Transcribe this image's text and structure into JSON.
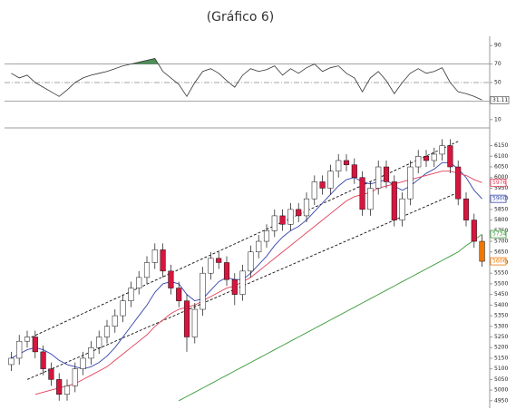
{
  "chart_data": {
    "type": "candlestick",
    "title": "(Gráfico 6)",
    "ylim": [
      4915,
      6225
    ],
    "yticks": [
      4950,
      5000,
      5050,
      5100,
      5150,
      5200,
      5250,
      5300,
      5350,
      5400,
      5450,
      5500,
      5550,
      5600,
      5650,
      5700,
      5750,
      5800,
      5850,
      5900,
      5950,
      6000,
      6050,
      6100,
      6150
    ],
    "up_color": "#ffffff",
    "down_color": "#d6163f",
    "candles": [
      [
        5120,
        5180,
        5090,
        5150
      ],
      [
        5150,
        5260,
        5120,
        5230
      ],
      [
        5230,
        5280,
        5200,
        5250
      ],
      [
        5250,
        5280,
        5150,
        5180
      ],
      [
        5180,
        5210,
        5070,
        5100
      ],
      [
        5100,
        5130,
        5020,
        5050
      ],
      [
        5050,
        5080,
        4950,
        4980
      ],
      [
        4980,
        5050,
        4950,
        5020
      ],
      [
        5020,
        5130,
        4990,
        5100
      ],
      [
        5100,
        5180,
        5070,
        5150
      ],
      [
        5150,
        5230,
        5120,
        5200
      ],
      [
        5200,
        5280,
        5170,
        5250
      ],
      [
        5250,
        5330,
        5220,
        5300
      ],
      [
        5300,
        5380,
        5270,
        5350
      ],
      [
        5350,
        5450,
        5320,
        5420
      ],
      [
        5420,
        5510,
        5390,
        5480
      ],
      [
        5480,
        5560,
        5450,
        5530
      ],
      [
        5530,
        5630,
        5500,
        5600
      ],
      [
        5600,
        5690,
        5570,
        5660
      ],
      [
        5660,
        5690,
        5530,
        5560
      ],
      [
        5560,
        5590,
        5450,
        5480
      ],
      [
        5480,
        5510,
        5390,
        5420
      ],
      [
        5420,
        5450,
        5180,
        5250
      ],
      [
        5250,
        5410,
        5220,
        5380
      ],
      [
        5380,
        5580,
        5350,
        5550
      ],
      [
        5550,
        5650,
        5520,
        5620
      ],
      [
        5620,
        5650,
        5570,
        5600
      ],
      [
        5600,
        5630,
        5490,
        5520
      ],
      [
        5520,
        5550,
        5400,
        5450
      ],
      [
        5450,
        5590,
        5420,
        5560
      ],
      [
        5560,
        5680,
        5530,
        5650
      ],
      [
        5650,
        5730,
        5620,
        5700
      ],
      [
        5700,
        5780,
        5670,
        5750
      ],
      [
        5750,
        5850,
        5720,
        5820
      ],
      [
        5820,
        5850,
        5750,
        5780
      ],
      [
        5780,
        5880,
        5750,
        5850
      ],
      [
        5850,
        5880,
        5790,
        5820
      ],
      [
        5820,
        5930,
        5790,
        5900
      ],
      [
        5900,
        6010,
        5870,
        5980
      ],
      [
        5980,
        6010,
        5920,
        5950
      ],
      [
        5950,
        6060,
        5920,
        6030
      ],
      [
        6030,
        6110,
        6000,
        6080
      ],
      [
        6080,
        6110,
        6030,
        6060
      ],
      [
        6060,
        6090,
        5970,
        6000
      ],
      [
        6000,
        6030,
        5820,
        5850
      ],
      [
        5850,
        5980,
        5820,
        5950
      ],
      [
        5950,
        6080,
        5920,
        6050
      ],
      [
        6050,
        6080,
        5950,
        5980
      ],
      [
        5980,
        6010,
        5770,
        5800
      ],
      [
        5800,
        5930,
        5770,
        5900
      ],
      [
        5900,
        6080,
        5870,
        6050
      ],
      [
        6050,
        6130,
        6020,
        6100
      ],
      [
        6100,
        6130,
        6050,
        6080
      ],
      [
        6080,
        6140,
        6050,
        6110
      ],
      [
        6110,
        6180,
        6080,
        6150
      ],
      [
        6150,
        6180,
        6020,
        6050
      ],
      [
        6050,
        6080,
        5870,
        5900
      ],
      [
        5900,
        5930,
        5770,
        5800
      ],
      [
        5800,
        5830,
        5670,
        5700
      ],
      [
        5700,
        5730,
        5580,
        5606
      ]
    ],
    "last_color": "#f07800",
    "series": [
      {
        "color": "#3344aa",
        "values": [
          5150,
          5170,
          5190,
          5200,
          5190,
          5170,
          5140,
          5120,
          5110,
          5100,
          5110,
          5130,
          5160,
          5200,
          5250,
          5300,
          5350,
          5400,
          5460,
          5500,
          5510,
          5500,
          5450,
          5420,
          5430,
          5470,
          5510,
          5530,
          5520,
          5520,
          5550,
          5590,
          5630,
          5680,
          5720,
          5750,
          5770,
          5800,
          5840,
          5880,
          5920,
          5960,
          5990,
          6000,
          5980,
          5970,
          5980,
          5990,
          5960,
          5940,
          5960,
          5990,
          6020,
          6040,
          6070,
          6070,
          6040,
          6000,
          5940,
          5900
        ]
      },
      {
        "color": "#e0405a",
        "values": [
          null,
          null,
          null,
          4980,
          4990,
          5000,
          5010,
          5020,
          5030,
          5050,
          5070,
          5090,
          5110,
          5140,
          5170,
          5200,
          5230,
          5260,
          5300,
          5330,
          5360,
          5380,
          5390,
          5400,
          5420,
          5440,
          5460,
          5480,
          5490,
          5510,
          5530,
          5560,
          5590,
          5620,
          5650,
          5680,
          5710,
          5740,
          5770,
          5800,
          5830,
          5860,
          5890,
          5910,
          5920,
          5930,
          5950,
          5960,
          5970,
          5980,
          5990,
          6000,
          6010,
          6020,
          6030,
          6030,
          6020,
          6010,
          5990,
          5976
        ]
      },
      {
        "color": "#3a9a3a",
        "values": [
          null,
          null,
          null,
          null,
          null,
          null,
          null,
          null,
          null,
          null,
          null,
          null,
          null,
          null,
          null,
          null,
          null,
          null,
          null,
          null,
          null,
          4950,
          4970,
          4990,
          5010,
          5030,
          5050,
          5070,
          5090,
          5110,
          5130,
          5150,
          5170,
          5190,
          5210,
          5230,
          5250,
          5270,
          5290,
          5310,
          5330,
          5350,
          5370,
          5390,
          5410,
          5430,
          5450,
          5470,
          5490,
          5510,
          5530,
          5550,
          5570,
          5590,
          5610,
          5630,
          5650,
          5680,
          5705,
          5734
        ]
      }
    ],
    "channel": {
      "x": [
        3,
        57
      ],
      "upper": [
        5240,
        6170
      ],
      "lower": [
        5050,
        5930
      ]
    },
    "rsi": {
      "ylim": [
        0,
        100
      ],
      "yticks": [
        10,
        50,
        70,
        90
      ],
      "levels": [
        70,
        50,
        30
      ],
      "color": "#333333",
      "fill_color": "#2f7a3a",
      "values": [
        60,
        55,
        58,
        50,
        45,
        40,
        35,
        42,
        50,
        55,
        58,
        60,
        62,
        65,
        68,
        70,
        72,
        74,
        76,
        62,
        55,
        48,
        35,
        50,
        62,
        65,
        60,
        52,
        45,
        58,
        65,
        62,
        64,
        68,
        58,
        65,
        60,
        66,
        70,
        62,
        66,
        68,
        60,
        55,
        40,
        55,
        62,
        52,
        38,
        50,
        60,
        65,
        60,
        62,
        66,
        50,
        40,
        38,
        35,
        31.11
      ]
    }
  }
}
